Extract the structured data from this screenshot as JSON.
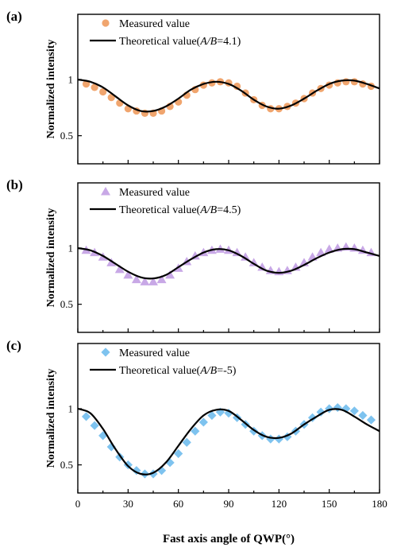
{
  "chart_data": [
    {
      "type": "scatter",
      "panel_label": "(a)",
      "ylabel": "Normalized intensity",
      "xlabel": "",
      "xlim": [
        0,
        180
      ],
      "ylim": [
        0.25,
        1.58
      ],
      "yticks": [
        "0.5",
        "1"
      ],
      "legend_position": "top-left",
      "measured": {
        "legend": "Measured value",
        "color": "#f0a56e",
        "marker": "circle",
        "x": [
          5,
          10,
          15,
          20,
          25,
          30,
          35,
          40,
          45,
          50,
          55,
          60,
          65,
          70,
          75,
          80,
          85,
          90,
          95,
          100,
          105,
          110,
          115,
          120,
          125,
          130,
          135,
          140,
          145,
          150,
          155,
          160,
          165,
          170,
          175
        ],
        "y": [
          0.96,
          0.93,
          0.89,
          0.84,
          0.79,
          0.74,
          0.72,
          0.7,
          0.7,
          0.72,
          0.76,
          0.8,
          0.86,
          0.91,
          0.95,
          0.97,
          0.98,
          0.97,
          0.94,
          0.88,
          0.82,
          0.77,
          0.74,
          0.74,
          0.76,
          0.79,
          0.83,
          0.88,
          0.92,
          0.95,
          0.97,
          0.98,
          0.98,
          0.96,
          0.94
        ]
      },
      "theory": {
        "legend_prefix": "Theoretical value(",
        "legend_var": "A/B",
        "legend_suffix": "=4.1)",
        "color": "#000000",
        "x": [
          0,
          7.5,
          15,
          22.5,
          30,
          37.5,
          45,
          52.5,
          60,
          67.5,
          75,
          82.5,
          90,
          97.5,
          105,
          112.5,
          120,
          127.5,
          135,
          142.5,
          150,
          157.5,
          165,
          172.5,
          180
        ],
        "y": [
          1.0,
          0.98,
          0.93,
          0.85,
          0.77,
          0.72,
          0.72,
          0.76,
          0.83,
          0.91,
          0.96,
          0.98,
          0.96,
          0.9,
          0.82,
          0.76,
          0.74,
          0.77,
          0.83,
          0.9,
          0.96,
          0.99,
          0.99,
          0.96,
          0.92
        ]
      }
    },
    {
      "type": "scatter",
      "panel_label": "(b)",
      "ylabel": "Normalized intensity",
      "xlabel": "",
      "xlim": [
        0,
        180
      ],
      "ylim": [
        0.25,
        1.58
      ],
      "yticks": [
        "0.5",
        "1"
      ],
      "legend_position": "top-left",
      "measured": {
        "legend": "Measured value",
        "color": "#c8a8e6",
        "marker": "triangle",
        "x": [
          5,
          10,
          15,
          20,
          25,
          30,
          35,
          40,
          45,
          50,
          55,
          60,
          65,
          70,
          75,
          80,
          85,
          90,
          95,
          100,
          105,
          110,
          115,
          120,
          125,
          130,
          135,
          140,
          145,
          150,
          155,
          160,
          165,
          170,
          175
        ],
        "y": [
          0.98,
          0.96,
          0.92,
          0.87,
          0.81,
          0.76,
          0.72,
          0.7,
          0.7,
          0.72,
          0.76,
          0.82,
          0.88,
          0.93,
          0.96,
          0.98,
          0.99,
          0.98,
          0.96,
          0.92,
          0.87,
          0.83,
          0.8,
          0.79,
          0.8,
          0.83,
          0.87,
          0.92,
          0.96,
          0.99,
          1.0,
          1.01,
          1.0,
          0.98,
          0.96
        ]
      },
      "theory": {
        "legend_prefix": "Theoretical value(",
        "legend_var": "A/B",
        "legend_suffix": "=4.5)",
        "color": "#000000",
        "x": [
          0,
          7.5,
          15,
          22.5,
          30,
          37.5,
          45,
          52.5,
          60,
          67.5,
          75,
          82.5,
          90,
          97.5,
          105,
          112.5,
          120,
          127.5,
          135,
          142.5,
          150,
          157.5,
          165,
          172.5,
          180
        ],
        "y": [
          1.0,
          0.98,
          0.93,
          0.86,
          0.79,
          0.74,
          0.73,
          0.76,
          0.83,
          0.9,
          0.96,
          0.99,
          0.98,
          0.93,
          0.86,
          0.8,
          0.78,
          0.8,
          0.85,
          0.91,
          0.96,
          0.99,
          0.99,
          0.96,
          0.93
        ]
      }
    },
    {
      "type": "scatter",
      "panel_label": "(c)",
      "ylabel": "Normalized intensity",
      "xlabel": "Fast axis angle of QWP(°)",
      "xlim": [
        0,
        180
      ],
      "xticks": [
        "0",
        "30",
        "60",
        "90",
        "120",
        "150",
        "180"
      ],
      "ylim": [
        0.25,
        1.58
      ],
      "yticks": [
        "0.5",
        "1"
      ],
      "legend_position": "top-left",
      "measured": {
        "legend": "Measured value",
        "color": "#7ec3ef",
        "marker": "diamond",
        "x": [
          5,
          10,
          15,
          20,
          25,
          30,
          35,
          40,
          45,
          50,
          55,
          60,
          65,
          70,
          75,
          80,
          85,
          90,
          95,
          100,
          105,
          110,
          115,
          120,
          125,
          130,
          135,
          140,
          145,
          150,
          155,
          160,
          165,
          170,
          175
        ],
        "y": [
          0.93,
          0.85,
          0.76,
          0.66,
          0.57,
          0.5,
          0.45,
          0.42,
          0.42,
          0.45,
          0.52,
          0.6,
          0.7,
          0.8,
          0.88,
          0.94,
          0.97,
          0.96,
          0.92,
          0.86,
          0.8,
          0.76,
          0.73,
          0.73,
          0.75,
          0.8,
          0.86,
          0.92,
          0.97,
          1.0,
          1.01,
          1.0,
          0.98,
          0.94,
          0.9
        ]
      },
      "theory": {
        "legend_prefix": "Theoretical value(",
        "legend_var": "A/B",
        "legend_suffix": "=-5)",
        "color": "#000000",
        "x": [
          0,
          7.5,
          15,
          22.5,
          30,
          37.5,
          45,
          52.5,
          60,
          67.5,
          75,
          82.5,
          90,
          97.5,
          105,
          112.5,
          120,
          127.5,
          135,
          142.5,
          150,
          157.5,
          165,
          172.5,
          180
        ],
        "y": [
          1.0,
          0.96,
          0.82,
          0.64,
          0.49,
          0.42,
          0.43,
          0.52,
          0.67,
          0.82,
          0.94,
          0.99,
          0.98,
          0.9,
          0.81,
          0.75,
          0.74,
          0.78,
          0.86,
          0.93,
          0.99,
          0.99,
          0.93,
          0.86,
          0.8
        ]
      }
    }
  ]
}
